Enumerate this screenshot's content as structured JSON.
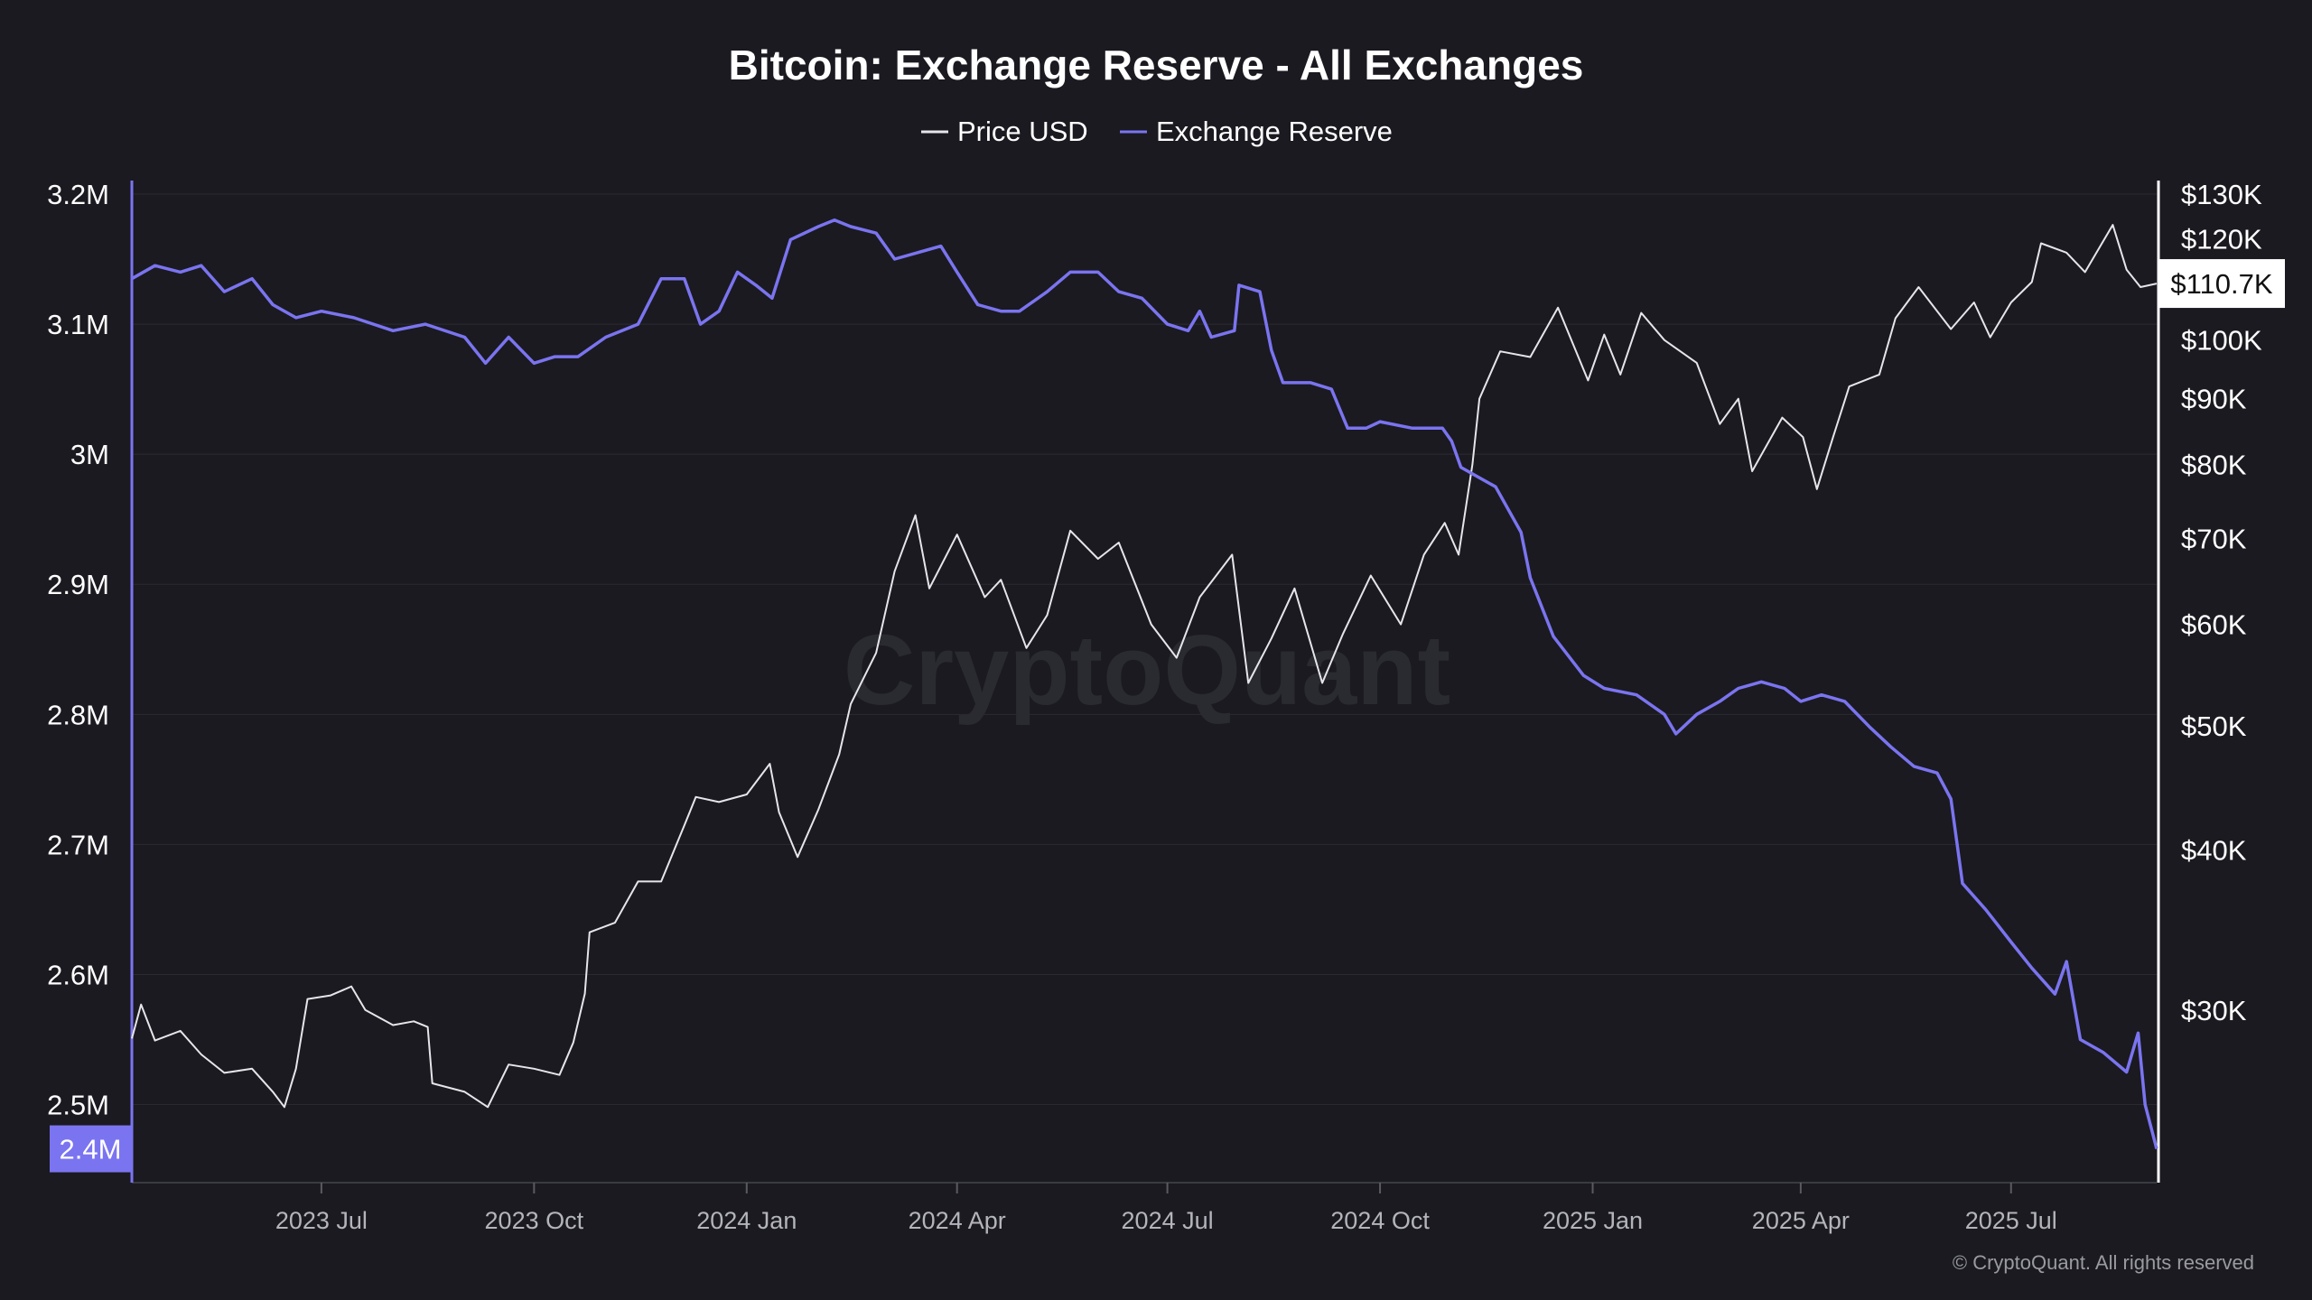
{
  "colors": {
    "background": "#1a1a20",
    "price": "#e6e6ea",
    "reserve": "#7b74f0",
    "grid": "#2a2a31"
  },
  "watermark": "CryptoQuant",
  "copyright": "© CryptoQuant. All rights reserved",
  "chart_data": {
    "type": "line",
    "title": "Bitcoin: Exchange Reserve - All Exchanges",
    "legend": {
      "placement": "top-center",
      "entries": [
        "Price USD",
        "Exchange Reserve"
      ]
    },
    "grid": true,
    "x": {
      "type": "date",
      "range": [
        "2023-04-10",
        "2025-09-02"
      ],
      "tick_dates": [
        "2023-07-01",
        "2023-10-01",
        "2024-01-01",
        "2024-04-01",
        "2024-07-01",
        "2024-10-01",
        "2025-01-01",
        "2025-04-01",
        "2025-07-01"
      ],
      "tick_labels": [
        "2023 Jul",
        "2023 Oct",
        "2024 Jan",
        "2024 Apr",
        "2024 Jul",
        "2024 Oct",
        "2025 Jan",
        "2025 Apr",
        "2025 Jul"
      ]
    },
    "y_left": {
      "range": [
        2.44,
        3.2
      ],
      "tick_values": [
        3.2,
        3.1,
        3.0,
        2.9,
        2.8,
        2.7,
        2.6,
        2.5
      ],
      "tick_labels": [
        "3.2M",
        "3.1M",
        "3M",
        "2.9M",
        "2.8M",
        "2.7M",
        "2.6M",
        "2.5M"
      ],
      "current_label": "2.4M"
    },
    "y_right": {
      "scale": "log",
      "range": [
        22,
        130
      ],
      "tick_values": [
        130,
        120,
        100,
        90,
        80,
        70,
        60,
        50,
        40,
        30
      ],
      "tick_labels": [
        "$130K",
        "$120K",
        "$100K",
        "$90K",
        "$80K",
        "$70K",
        "$60K",
        "$50K",
        "$40K",
        "$30K"
      ],
      "current_label": "$110.7K"
    },
    "series": [
      {
        "name": "Price USD",
        "axis": "right",
        "points": [
          [
            "2023-04-10",
            28.5
          ],
          [
            "2023-04-14",
            30.3
          ],
          [
            "2023-04-20",
            28.4
          ],
          [
            "2023-05-01",
            28.9
          ],
          [
            "2023-05-10",
            27.7
          ],
          [
            "2023-05-20",
            26.8
          ],
          [
            "2023-06-01",
            27.0
          ],
          [
            "2023-06-10",
            25.9
          ],
          [
            "2023-06-15",
            25.2
          ],
          [
            "2023-06-20",
            27.0
          ],
          [
            "2023-06-25",
            30.6
          ],
          [
            "2023-07-05",
            30.8
          ],
          [
            "2023-07-14",
            31.3
          ],
          [
            "2023-07-20",
            30.0
          ],
          [
            "2023-08-01",
            29.2
          ],
          [
            "2023-08-10",
            29.4
          ],
          [
            "2023-08-16",
            29.1
          ],
          [
            "2023-08-18",
            26.3
          ],
          [
            "2023-09-01",
            25.9
          ],
          [
            "2023-09-11",
            25.2
          ],
          [
            "2023-09-20",
            27.2
          ],
          [
            "2023-10-01",
            27.0
          ],
          [
            "2023-10-12",
            26.7
          ],
          [
            "2023-10-18",
            28.3
          ],
          [
            "2023-10-23",
            30.9
          ],
          [
            "2023-10-25",
            34.5
          ],
          [
            "2023-11-05",
            35.1
          ],
          [
            "2023-11-15",
            37.8
          ],
          [
            "2023-11-25",
            37.8
          ],
          [
            "2023-12-05",
            41.8
          ],
          [
            "2023-12-10",
            44.0
          ],
          [
            "2023-12-20",
            43.6
          ],
          [
            "2024-01-01",
            44.2
          ],
          [
            "2024-01-11",
            46.7
          ],
          [
            "2024-01-15",
            42.8
          ],
          [
            "2024-01-23",
            39.5
          ],
          [
            "2024-02-01",
            43.0
          ],
          [
            "2024-02-10",
            47.5
          ],
          [
            "2024-02-15",
            52.0
          ],
          [
            "2024-02-26",
            57.0
          ],
          [
            "2024-03-05",
            66.0
          ],
          [
            "2024-03-14",
            73.0
          ],
          [
            "2024-03-20",
            64.0
          ],
          [
            "2024-04-01",
            70.5
          ],
          [
            "2024-04-13",
            63.0
          ],
          [
            "2024-04-20",
            65.0
          ],
          [
            "2024-05-01",
            57.5
          ],
          [
            "2024-05-10",
            61.0
          ],
          [
            "2024-05-20",
            71.0
          ],
          [
            "2024-06-01",
            67.5
          ],
          [
            "2024-06-10",
            69.5
          ],
          [
            "2024-06-24",
            60.0
          ],
          [
            "2024-07-05",
            56.5
          ],
          [
            "2024-07-15",
            63.0
          ],
          [
            "2024-07-29",
            68.0
          ],
          [
            "2024-08-05",
            54.0
          ],
          [
            "2024-08-15",
            58.5
          ],
          [
            "2024-08-25",
            64.0
          ],
          [
            "2024-09-06",
            54.0
          ],
          [
            "2024-09-15",
            59.0
          ],
          [
            "2024-09-27",
            65.5
          ],
          [
            "2024-10-10",
            60.0
          ],
          [
            "2024-10-20",
            68.0
          ],
          [
            "2024-10-29",
            72.0
          ],
          [
            "2024-11-04",
            68.0
          ],
          [
            "2024-11-10",
            80.0
          ],
          [
            "2024-11-13",
            90.0
          ],
          [
            "2024-11-22",
            98.0
          ],
          [
            "2024-12-05",
            97.0
          ],
          [
            "2024-12-17",
            106.0
          ],
          [
            "2024-12-30",
            93.0
          ],
          [
            "2025-01-06",
            101.0
          ],
          [
            "2025-01-13",
            94.0
          ],
          [
            "2025-01-22",
            105.0
          ],
          [
            "2025-02-01",
            100.0
          ],
          [
            "2025-02-15",
            96.0
          ],
          [
            "2025-02-25",
            86.0
          ],
          [
            "2025-03-05",
            90.0
          ],
          [
            "2025-03-11",
            79.0
          ],
          [
            "2025-03-24",
            87.0
          ],
          [
            "2025-04-02",
            84.0
          ],
          [
            "2025-04-08",
            76.5
          ],
          [
            "2025-04-15",
            84.0
          ],
          [
            "2025-04-22",
            92.0
          ],
          [
            "2025-05-05",
            94.0
          ],
          [
            "2025-05-12",
            104.0
          ],
          [
            "2025-05-22",
            110.0
          ],
          [
            "2025-06-05",
            102.0
          ],
          [
            "2025-06-15",
            107.0
          ],
          [
            "2025-06-22",
            100.5
          ],
          [
            "2025-07-01",
            107.0
          ],
          [
            "2025-07-10",
            111.0
          ],
          [
            "2025-07-14",
            119.0
          ],
          [
            "2025-07-25",
            117.0
          ],
          [
            "2025-08-02",
            113.0
          ],
          [
            "2025-08-14",
            123.0
          ],
          [
            "2025-08-20",
            113.5
          ],
          [
            "2025-08-26",
            110.0
          ],
          [
            "2025-09-02",
            110.7
          ]
        ]
      },
      {
        "name": "Exchange Reserve",
        "axis": "left",
        "points": [
          [
            "2023-04-10",
            3.135
          ],
          [
            "2023-04-20",
            3.145
          ],
          [
            "2023-05-01",
            3.14
          ],
          [
            "2023-05-10",
            3.145
          ],
          [
            "2023-05-20",
            3.125
          ],
          [
            "2023-06-01",
            3.135
          ],
          [
            "2023-06-10",
            3.115
          ],
          [
            "2023-06-20",
            3.105
          ],
          [
            "2023-07-01",
            3.11
          ],
          [
            "2023-07-15",
            3.105
          ],
          [
            "2023-08-01",
            3.095
          ],
          [
            "2023-08-15",
            3.1
          ],
          [
            "2023-09-01",
            3.09
          ],
          [
            "2023-09-10",
            3.07
          ],
          [
            "2023-09-20",
            3.09
          ],
          [
            "2023-10-01",
            3.07
          ],
          [
            "2023-10-10",
            3.075
          ],
          [
            "2023-10-20",
            3.075
          ],
          [
            "2023-11-01",
            3.09
          ],
          [
            "2023-11-15",
            3.1
          ],
          [
            "2023-11-25",
            3.135
          ],
          [
            "2023-12-05",
            3.135
          ],
          [
            "2023-12-12",
            3.1
          ],
          [
            "2023-12-20",
            3.11
          ],
          [
            "2023-12-28",
            3.14
          ],
          [
            "2024-01-05",
            3.13
          ],
          [
            "2024-01-12",
            3.12
          ],
          [
            "2024-01-20",
            3.165
          ],
          [
            "2024-02-01",
            3.175
          ],
          [
            "2024-02-08",
            3.18
          ],
          [
            "2024-02-15",
            3.175
          ],
          [
            "2024-02-26",
            3.17
          ],
          [
            "2024-03-05",
            3.15
          ],
          [
            "2024-03-15",
            3.155
          ],
          [
            "2024-03-25",
            3.16
          ],
          [
            "2024-04-01",
            3.14
          ],
          [
            "2024-04-10",
            3.115
          ],
          [
            "2024-04-20",
            3.11
          ],
          [
            "2024-04-28",
            3.11
          ],
          [
            "2024-05-10",
            3.125
          ],
          [
            "2024-05-20",
            3.14
          ],
          [
            "2024-06-01",
            3.14
          ],
          [
            "2024-06-10",
            3.125
          ],
          [
            "2024-06-20",
            3.12
          ],
          [
            "2024-07-01",
            3.1
          ],
          [
            "2024-07-10",
            3.095
          ],
          [
            "2024-07-15",
            3.11
          ],
          [
            "2024-07-20",
            3.09
          ],
          [
            "2024-07-30",
            3.095
          ],
          [
            "2024-08-01",
            3.13
          ],
          [
            "2024-08-10",
            3.125
          ],
          [
            "2024-08-15",
            3.08
          ],
          [
            "2024-08-20",
            3.055
          ],
          [
            "2024-09-01",
            3.055
          ],
          [
            "2024-09-10",
            3.05
          ],
          [
            "2024-09-17",
            3.02
          ],
          [
            "2024-09-25",
            3.02
          ],
          [
            "2024-10-01",
            3.025
          ],
          [
            "2024-10-15",
            3.02
          ],
          [
            "2024-10-28",
            3.02
          ],
          [
            "2024-11-01",
            3.01
          ],
          [
            "2024-11-05",
            2.99
          ],
          [
            "2024-11-20",
            2.975
          ],
          [
            "2024-12-01",
            2.94
          ],
          [
            "2024-12-05",
            2.905
          ],
          [
            "2024-12-15",
            2.86
          ],
          [
            "2024-12-28",
            2.83
          ],
          [
            "2025-01-06",
            2.82
          ],
          [
            "2025-01-20",
            2.815
          ],
          [
            "2025-02-01",
            2.8
          ],
          [
            "2025-02-06",
            2.785
          ],
          [
            "2025-02-15",
            2.8
          ],
          [
            "2025-02-25",
            2.81
          ],
          [
            "2025-03-05",
            2.82
          ],
          [
            "2025-03-15",
            2.825
          ],
          [
            "2025-03-25",
            2.82
          ],
          [
            "2025-04-01",
            2.81
          ],
          [
            "2025-04-10",
            2.815
          ],
          [
            "2025-04-20",
            2.81
          ],
          [
            "2025-05-01",
            2.79
          ],
          [
            "2025-05-10",
            2.775
          ],
          [
            "2025-05-20",
            2.76
          ],
          [
            "2025-05-30",
            2.755
          ],
          [
            "2025-06-05",
            2.735
          ],
          [
            "2025-06-10",
            2.67
          ],
          [
            "2025-06-20",
            2.65
          ],
          [
            "2025-07-01",
            2.625
          ],
          [
            "2025-07-10",
            2.605
          ],
          [
            "2025-07-20",
            2.585
          ],
          [
            "2025-07-25",
            2.61
          ],
          [
            "2025-07-31",
            2.55
          ],
          [
            "2025-08-10",
            2.54
          ],
          [
            "2025-08-20",
            2.525
          ],
          [
            "2025-08-25",
            2.555
          ],
          [
            "2025-08-28",
            2.5
          ],
          [
            "2025-09-02",
            2.466
          ]
        ]
      }
    ]
  }
}
